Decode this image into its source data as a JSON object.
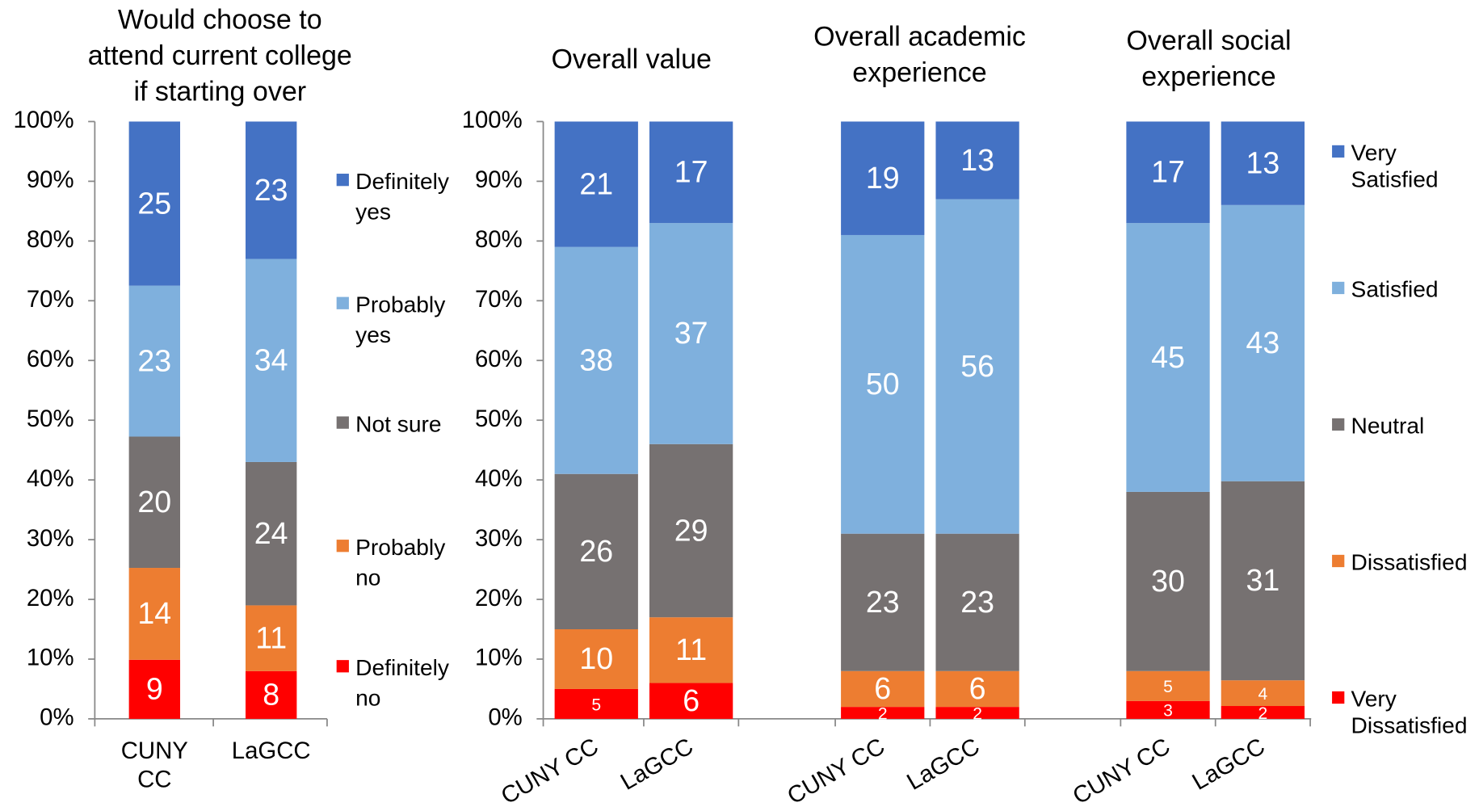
{
  "chart_data": [
    {
      "type": "bar",
      "stacking": "percent",
      "title": "Would choose to\nattend current college\nif starting over",
      "categories": [
        "CUNY\nCC",
        "LaGCC"
      ],
      "series": [
        {
          "name": "Definitely\nno",
          "color": "#ff0000",
          "values": [
            9,
            8
          ]
        },
        {
          "name": "Probably\nno",
          "color": "#ed7d31",
          "values": [
            14,
            11
          ]
        },
        {
          "name": "Not sure",
          "color": "#767171",
          "values": [
            20,
            24
          ]
        },
        {
          "name": "Probably\nyes",
          "color": "#7fb0dd",
          "values": [
            23,
            34
          ]
        },
        {
          "name": "Definitely\nyes",
          "color": "#4472c4",
          "values": [
            25,
            23
          ]
        }
      ],
      "ylim": [
        0,
        100
      ],
      "yticks": [
        {
          "value": 0,
          "label": "0%"
        },
        {
          "value": 10,
          "label": "10%"
        },
        {
          "value": 20,
          "label": "20%"
        },
        {
          "value": 30,
          "label": "30%"
        },
        {
          "value": 40,
          "label": "40%"
        },
        {
          "value": 50,
          "label": "50%"
        },
        {
          "value": 60,
          "label": "60%"
        },
        {
          "value": 70,
          "label": "70%"
        },
        {
          "value": 80,
          "label": "80%"
        },
        {
          "value": 90,
          "label": "90%"
        },
        {
          "value": 100,
          "label": "100%"
        }
      ],
      "legend": "right"
    },
    {
      "type": "bar",
      "stacking": "percent",
      "groups": [
        "Overall value",
        "Overall academic\nexperience",
        "Overall social\nexperience"
      ],
      "categories": [
        "CUNY CC",
        "LaGCC",
        "CUNY CC",
        "LaGCC",
        "CUNY CC",
        "LaGCC"
      ],
      "series": [
        {
          "name": "Very\nDissatisfied",
          "color": "#ff0000",
          "values": [
            5,
            6,
            2,
            2,
            3,
            2
          ]
        },
        {
          "name": "Dissatisfied",
          "color": "#ed7d31",
          "values": [
            10,
            11,
            6,
            6,
            5,
            4
          ]
        },
        {
          "name": "Neutral",
          "color": "#767171",
          "values": [
            26,
            29,
            23,
            23,
            30,
            31
          ]
        },
        {
          "name": "Satisfied",
          "color": "#7fb0dd",
          "values": [
            38,
            37,
            50,
            56,
            45,
            43
          ]
        },
        {
          "name": "Very\nSatisfied",
          "color": "#4472c4",
          "values": [
            21,
            17,
            19,
            13,
            17,
            13
          ]
        }
      ],
      "ylim": [
        0,
        100
      ],
      "yticks": [
        {
          "value": 0,
          "label": "0%"
        },
        {
          "value": 10,
          "label": "10%"
        },
        {
          "value": 20,
          "label": "20%"
        },
        {
          "value": 30,
          "label": "30%"
        },
        {
          "value": 40,
          "label": "40%"
        },
        {
          "value": 50,
          "label": "50%"
        },
        {
          "value": 60,
          "label": "60%"
        },
        {
          "value": 70,
          "label": "70%"
        },
        {
          "value": 80,
          "label": "80%"
        },
        {
          "value": 90,
          "label": "90%"
        },
        {
          "value": 100,
          "label": "100%"
        }
      ],
      "legend": "right"
    }
  ]
}
